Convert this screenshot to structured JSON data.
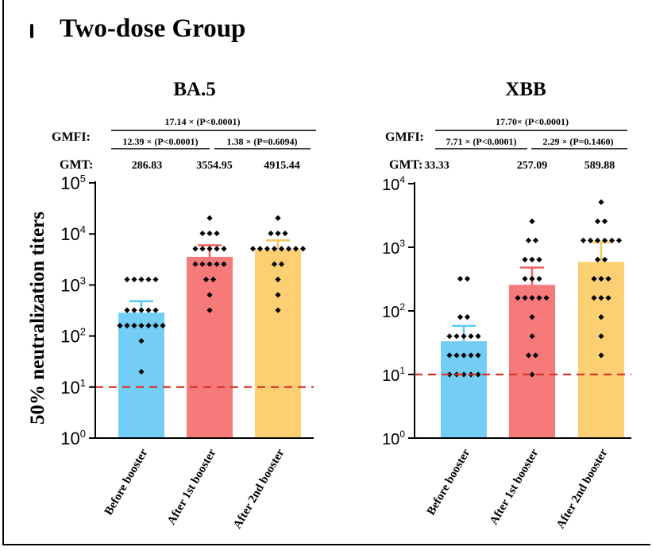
{
  "figure": {
    "title": "Two-dose Group",
    "ylabel": "50% neutralization titers"
  },
  "chart_data": [
    {
      "type": "bar",
      "title": "BA.5",
      "scale": "log10",
      "ylim": [
        1,
        100000
      ],
      "yticks": [
        1,
        10,
        100,
        1000,
        10000,
        100000
      ],
      "ytick_labels": [
        [
          "10",
          "0"
        ],
        [
          "10",
          "1"
        ],
        [
          "10",
          "2"
        ],
        [
          "10",
          "3"
        ],
        [
          "10",
          "4"
        ],
        [
          "10",
          "5"
        ]
      ],
      "threshold": 10,
      "categories": [
        "Before booster",
        "After 1st booster",
        "After 2nd booster"
      ],
      "colors": [
        "#73cdf5",
        "#f77a7a",
        "#fbcf72"
      ],
      "errbar_colors": [
        "#5ac8f7",
        "#f06060",
        "#f6c55a"
      ],
      "values": [
        286.83,
        3554.95,
        4915.44
      ],
      "error_upper": [
        480,
        6000,
        7500
      ],
      "points": [
        [
          1280,
          1280,
          1280,
          1280,
          1280,
          320,
          320,
          320,
          320,
          320,
          160,
          160,
          160,
          160,
          160,
          160,
          160,
          80,
          20
        ],
        [
          20480,
          10240,
          10240,
          10240,
          5120,
          5120,
          5120,
          5120,
          5120,
          2560,
          2560,
          2560,
          2560,
          2560,
          1280,
          1280,
          640,
          320
        ],
        [
          20480,
          10240,
          10240,
          10240,
          5120,
          5120,
          5120,
          5120,
          5120,
          5120,
          5120,
          5120,
          2560,
          2560,
          1280,
          640,
          320
        ]
      ],
      "gmt": {
        "label": "GMT:",
        "values": [
          "286.83",
          "3554.95",
          "4915.44"
        ]
      },
      "gmfi": {
        "label": "GMFI:",
        "top": "17.14 ×  (P<0.0001)",
        "left": "12.39 × (P<0.0001)",
        "right": "1.38 × (P=0.6094)"
      }
    },
    {
      "type": "bar",
      "title": "XBB",
      "scale": "log10",
      "ylim": [
        1,
        10000
      ],
      "yticks": [
        1,
        10,
        100,
        1000,
        10000
      ],
      "ytick_labels": [
        [
          "10",
          "0"
        ],
        [
          "10",
          "1"
        ],
        [
          "10",
          "2"
        ],
        [
          "10",
          "3"
        ],
        [
          "10",
          "4"
        ]
      ],
      "threshold": 10,
      "categories": [
        "Before booster",
        "After 1st booster",
        "After 2nd booster"
      ],
      "colors": [
        "#73cdf5",
        "#f77a7a",
        "#fbcf72"
      ],
      "errbar_colors": [
        "#5ac8f7",
        "#f06060",
        "#f6c55a"
      ],
      "values": [
        33.33,
        257.09,
        589.88
      ],
      "error_upper": [
        58,
        480,
        1200
      ],
      "points": [
        [
          320,
          320,
          80,
          80,
          40,
          40,
          40,
          40,
          40,
          20,
          20,
          20,
          20,
          20,
          10,
          10,
          10,
          10,
          10
        ],
        [
          2560,
          1280,
          1280,
          640,
          640,
          640,
          320,
          320,
          320,
          160,
          160,
          160,
          160,
          160,
          80,
          40,
          20,
          20,
          10
        ],
        [
          5120,
          2560,
          2560,
          1280,
          1280,
          1280,
          1280,
          1280,
          1280,
          640,
          640,
          320,
          320,
          320,
          160,
          160,
          160,
          80,
          40,
          20
        ]
      ],
      "gmt": {
        "label": "GMT:",
        "values": [
          "33.33",
          "257.09",
          "589.88"
        ]
      },
      "gmfi": {
        "label": "GMFI:",
        "top": "17.70× (P<0.0001)",
        "left": "7.71 × (P<0.0001)",
        "right": "2.29 × (P=0.1460)"
      }
    }
  ]
}
